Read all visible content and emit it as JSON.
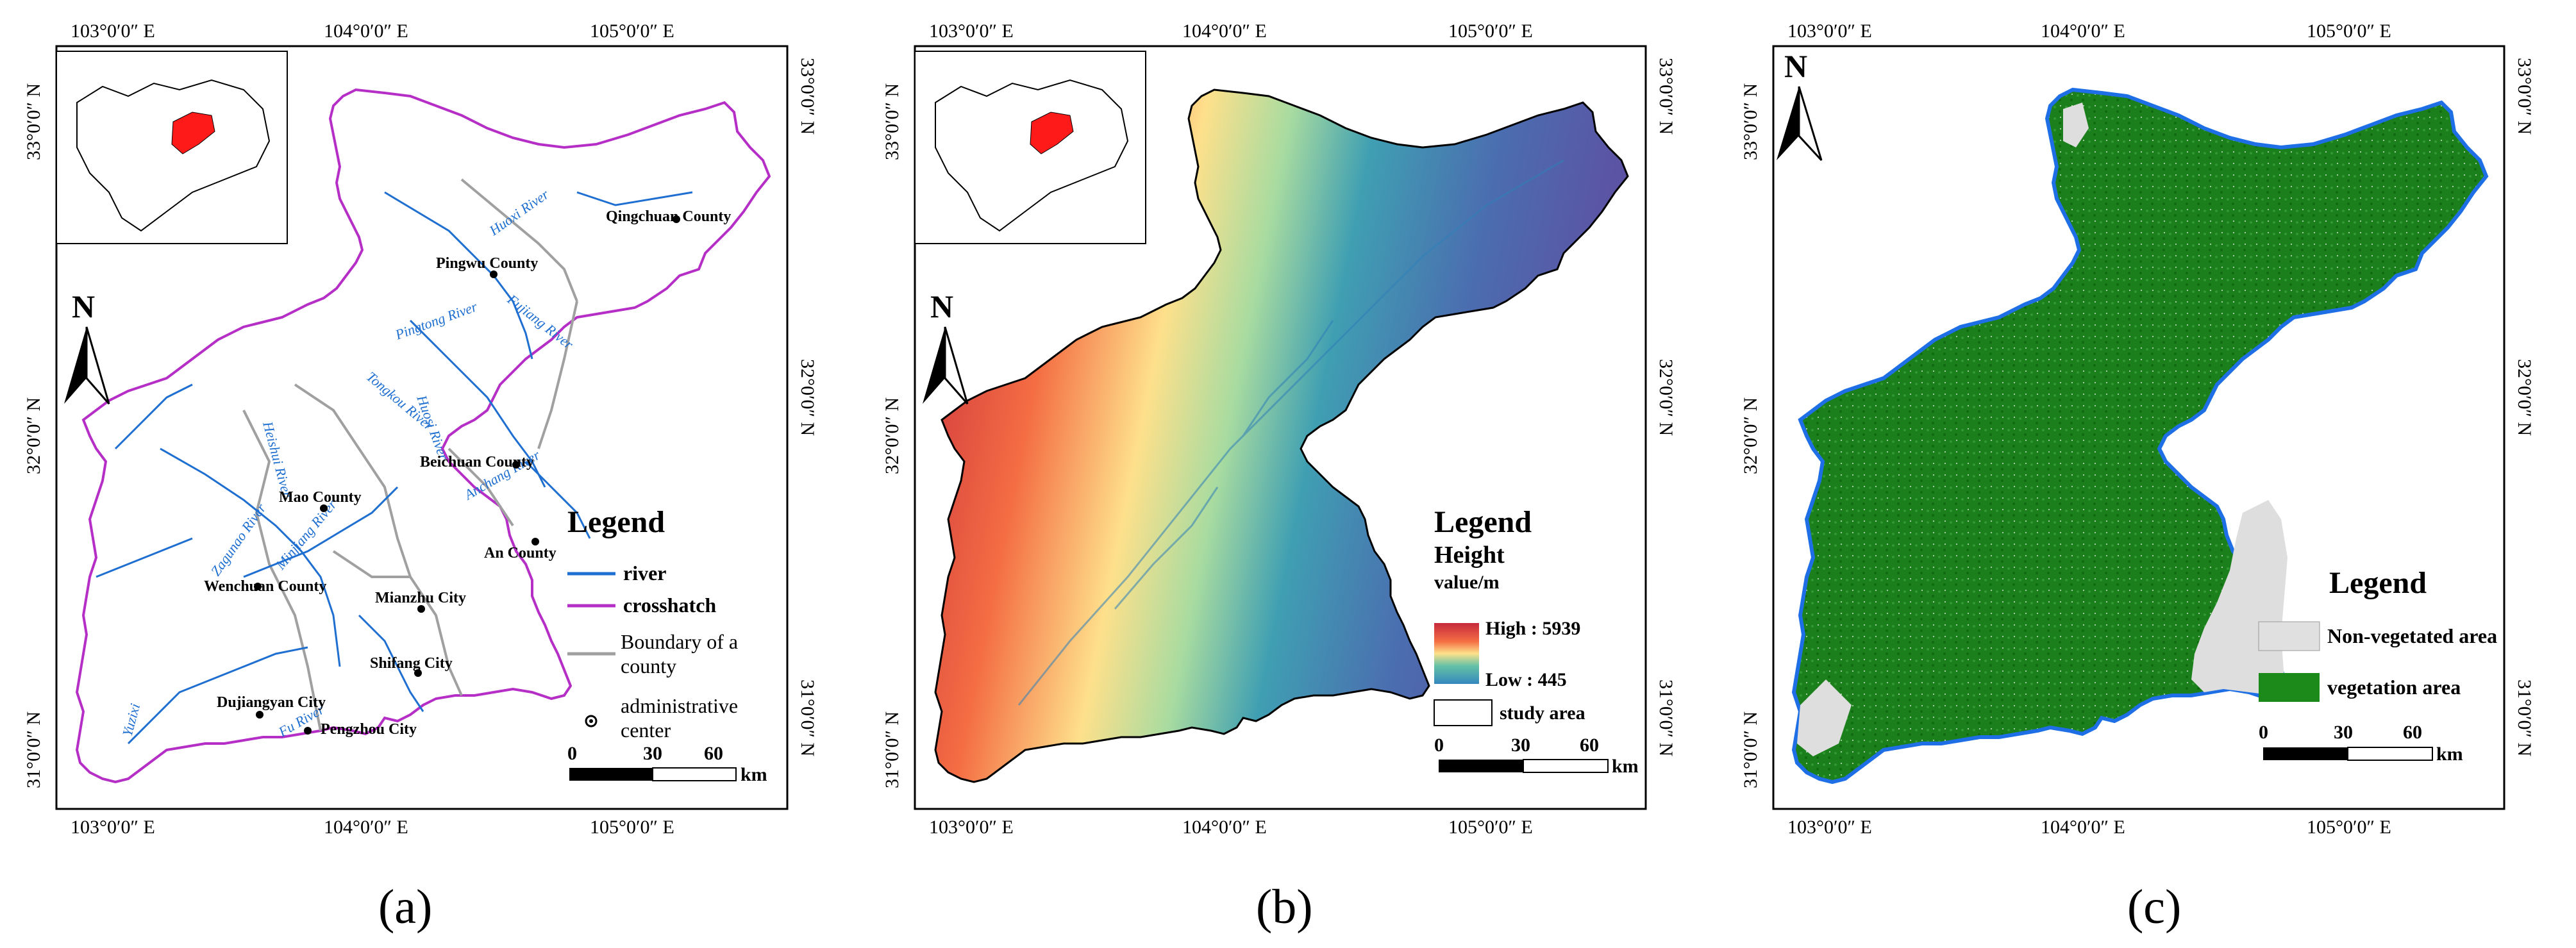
{
  "panels": [
    {
      "id": "a",
      "caption": "(a)",
      "lon_ticks": [
        "103°0′0″ E",
        "104°0′0″ E",
        "105°0′0″ E"
      ],
      "lat_ticks": [
        "33°0′0″ N",
        "32°0′0″ N",
        "31°0′0″ N"
      ],
      "north": "N",
      "legend": {
        "title": "Legend",
        "items": [
          {
            "label": "river",
            "color": "#1f6fd1"
          },
          {
            "label": "crosshatch",
            "color": "#b52fc7"
          },
          {
            "label": "Boundary of a county",
            "color": "#a0a0a0"
          },
          {
            "label": "administrative center",
            "color": "#000000"
          }
        ]
      },
      "scale": {
        "labels": [
          "0",
          "30",
          "60"
        ],
        "unit": "km"
      },
      "places": [
        "Qingchuan County",
        "Pingwu County",
        "Beichuan County",
        "Mao County",
        "An County",
        "Wenchuan County",
        "Mianzhu City",
        "Shifang City",
        "Dujiangyan City",
        "Pengzhou City"
      ],
      "rivers": [
        "Huoxi River",
        "Fujiang River",
        "Pingtong River",
        "Tongkou River",
        "Heishui River",
        "Minjiang River",
        "Zagunao River",
        "Anchang River",
        "Yuzixi",
        "Fu River",
        "Huosi River"
      ]
    },
    {
      "id": "b",
      "caption": "(b)",
      "lon_ticks": [
        "103°0′0″ E",
        "104°0′0″ E",
        "105°0′0″ E"
      ],
      "lat_ticks": [
        "33°0′0″ N",
        "32°0′0″ N",
        "31°0′0″ N"
      ],
      "north": "N",
      "legend": {
        "title": "Legend",
        "subtitle": "Height",
        "unit": "value/m",
        "high": "High : 5939",
        "low": "Low : 445",
        "area": "study area"
      },
      "scale": {
        "labels": [
          "0",
          "30",
          "60"
        ],
        "unit": "km"
      },
      "ramp_colors": [
        "#c62a3d",
        "#f46d43",
        "#fee08b",
        "#e6f598",
        "#66c2a5",
        "#3288bd",
        "#5e4fa2"
      ]
    },
    {
      "id": "c",
      "caption": "(c)",
      "lon_ticks": [
        "103°0′0″ E",
        "104°0′0″ E",
        "105°0′0″ E"
      ],
      "lat_ticks": [
        "33°0′0″ N",
        "32°0′0″ N",
        "31°0′0″ N"
      ],
      "north": "N",
      "legend": {
        "title": "Legend",
        "items": [
          {
            "label": "Non-vegetated area",
            "color": "#e0e0e0"
          },
          {
            "label": "vegetation area",
            "color": "#1b8a1b"
          }
        ]
      },
      "scale": {
        "labels": [
          "0",
          "30",
          "60"
        ],
        "unit": "km"
      },
      "colors": {
        "veg": "#1b7f1b",
        "nonveg": "#dedede",
        "boundary": "#1e6fe6"
      }
    }
  ]
}
